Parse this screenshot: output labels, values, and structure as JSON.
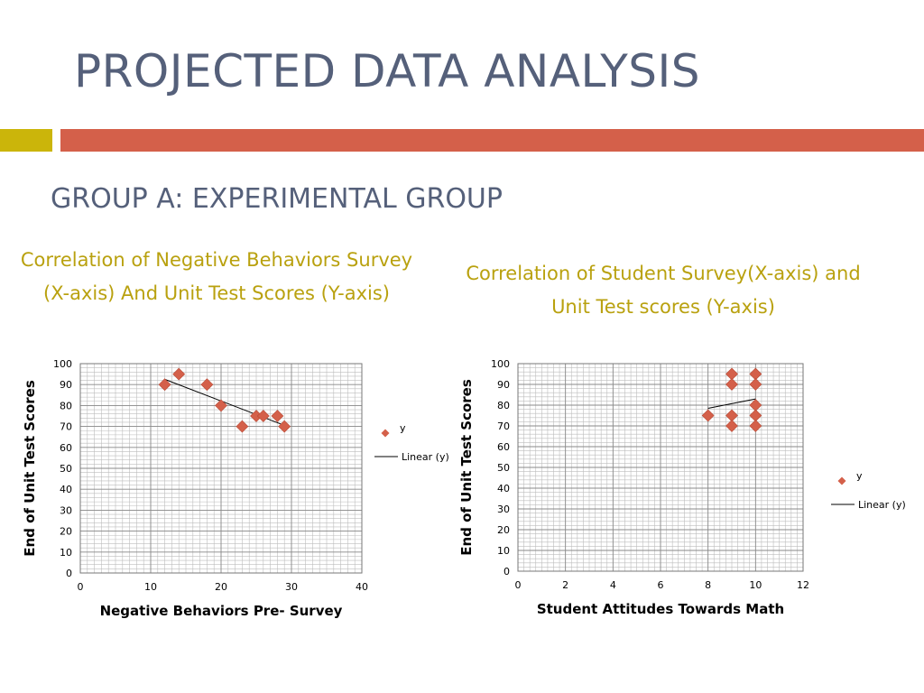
{
  "slide": {
    "title": "PROJECTED DATA ANALYSIS",
    "subtitle": "GROUP A: EXPERIMENTAL GROUP",
    "accent_colors": {
      "title": "#55607a",
      "bar_left": "#cbb50a",
      "bar_right": "#d4604a",
      "caption": "#b9a10f"
    }
  },
  "captions": [
    "Correlation of Negative Behaviors Survey (X-axis) And Unit Test Scores (Y-axis)",
    "Correlation of Student Survey(X-axis) and Unit Test scores (Y-axis)"
  ],
  "chart_data": [
    {
      "type": "scatter",
      "xlabel": "Negative Behaviors Pre- Survey",
      "ylabel": "End of Unit Test Scores",
      "xlim": [
        0,
        40
      ],
      "ylim": [
        0,
        100
      ],
      "xticks": [
        0,
        10,
        20,
        30,
        40
      ],
      "yticks": [
        0,
        10,
        20,
        30,
        40,
        50,
        60,
        70,
        80,
        90,
        100
      ],
      "grid": true,
      "legend_position": "right",
      "marker_color": "#d4604a",
      "series": [
        {
          "name": "y",
          "x": [
            12,
            14,
            18,
            20,
            23,
            25,
            26,
            28,
            29
          ],
          "y": [
            90,
            95,
            90,
            80,
            70,
            75,
            75,
            75,
            70
          ]
        },
        {
          "name": "Linear (y)",
          "type": "line",
          "x": [
            12,
            29
          ],
          "y": [
            92.5,
            70.5
          ]
        }
      ]
    },
    {
      "type": "scatter",
      "xlabel": "Student Attitudes Towards Math",
      "ylabel": "End of Unit Test Scores",
      "xlim": [
        0,
        12
      ],
      "ylim": [
        0,
        100
      ],
      "xticks": [
        0,
        2,
        4,
        6,
        8,
        10,
        12
      ],
      "yticks": [
        0,
        10,
        20,
        30,
        40,
        50,
        60,
        70,
        80,
        90,
        100
      ],
      "grid": true,
      "legend_position": "right",
      "marker_color": "#d4604a",
      "series": [
        {
          "name": "y",
          "x": [
            8,
            9,
            9,
            9,
            9,
            10,
            10,
            10,
            10,
            10
          ],
          "y": [
            75,
            95,
            90,
            75,
            70,
            95,
            90,
            80,
            75,
            70
          ]
        },
        {
          "name": "Linear (y)",
          "type": "line",
          "x": [
            8,
            10
          ],
          "y": [
            78.5,
            83
          ]
        }
      ]
    }
  ]
}
